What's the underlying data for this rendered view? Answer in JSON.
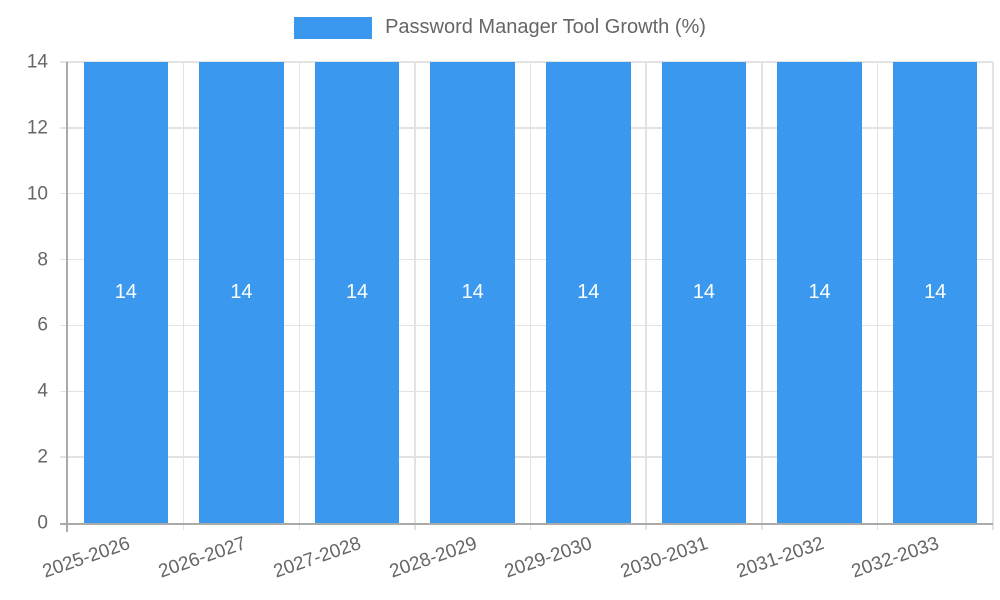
{
  "chart_data": {
    "type": "bar",
    "title": "Password Manager Tool Growth (%)",
    "series_label": "Password Manager Tool Growth (%)",
    "categories": [
      "2025-2026",
      "2026-2027",
      "2027-2028",
      "2028-2029",
      "2029-2030",
      "2030-2031",
      "2031-2032",
      "2032-2033"
    ],
    "values": [
      14,
      14,
      14,
      14,
      14,
      14,
      14,
      14
    ],
    "xlabel": "",
    "ylabel": "",
    "ylim": [
      0,
      14
    ],
    "yticks": [
      0,
      2,
      4,
      6,
      8,
      10,
      12,
      14
    ],
    "grid": true,
    "legend_position": "top",
    "bar_color": "#3a99ee",
    "bar_label_color": "#ffffff",
    "grid_color": "#e3e3e3",
    "axis_color": "#aaaaaa",
    "text_color": "#666666",
    "x_label_rotation_deg": -19
  }
}
